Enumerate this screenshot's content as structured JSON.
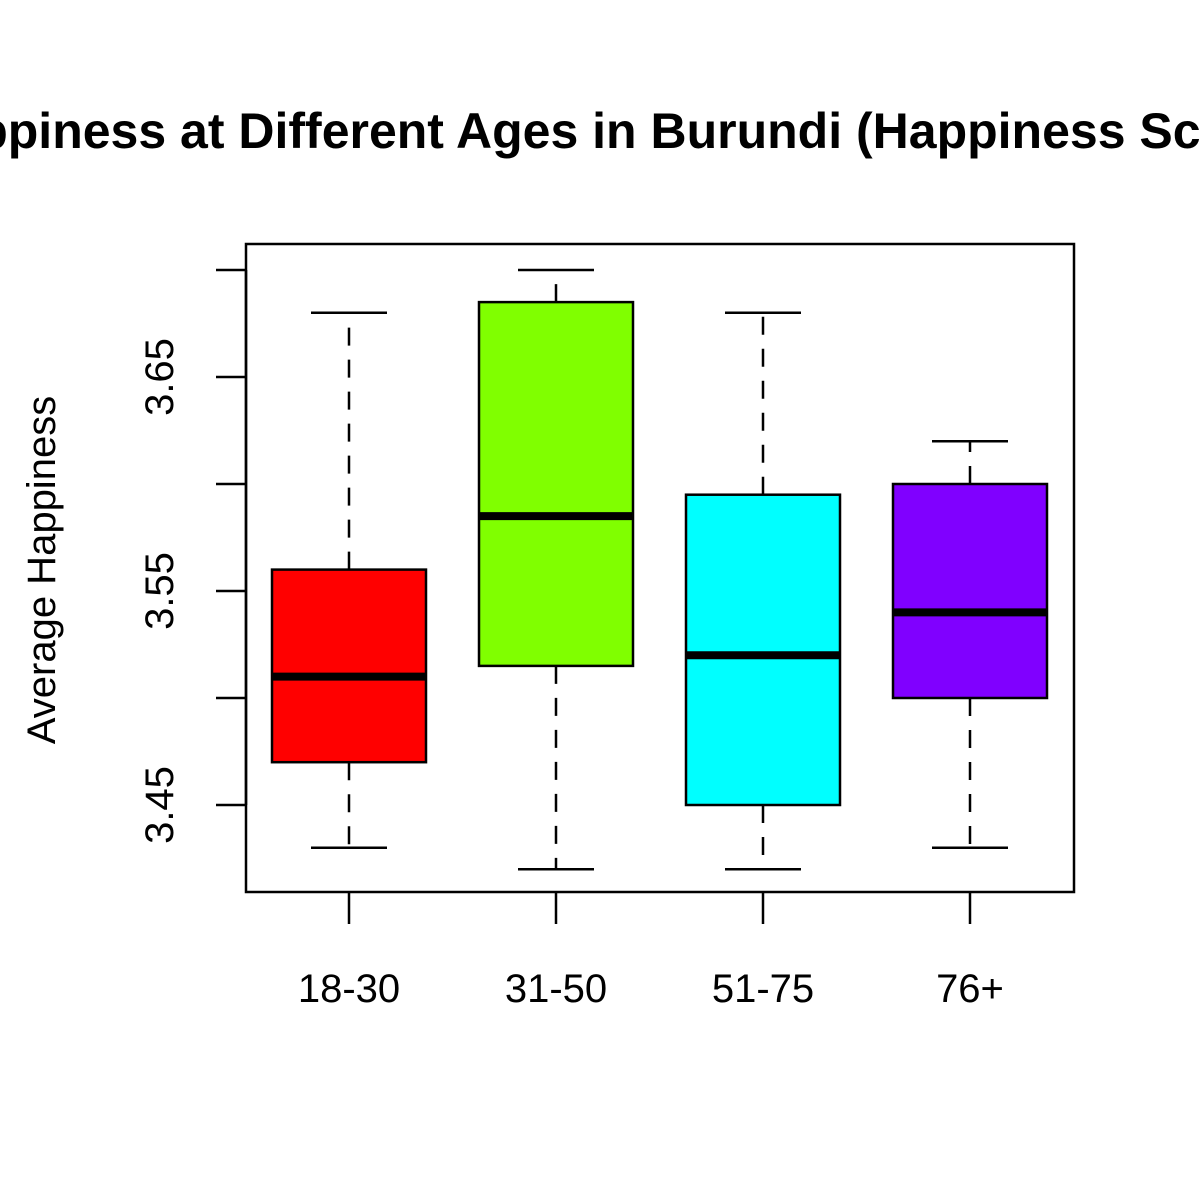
{
  "chart_data": {
    "type": "box",
    "title": "Happiness at Different Ages in Burundi (Happiness Scale)",
    "xlabel": "",
    "ylabel": "Average Happiness",
    "ylim": [
      3.41,
      3.71
    ],
    "yticks": [
      3.45,
      3.5,
      3.55,
      3.6,
      3.65,
      3.7
    ],
    "ytick_labels": [
      "3.45",
      "",
      "3.55",
      "",
      "3.65",
      ""
    ],
    "grid": false,
    "legend": "none",
    "categories": [
      "18-30",
      "31-50",
      "51-75",
      "76+"
    ],
    "boxes": [
      {
        "category": "18-30",
        "min": 3.43,
        "q1": 3.47,
        "median": 3.51,
        "q3": 3.56,
        "max": 3.68,
        "color": "#ff0000"
      },
      {
        "category": "31-50",
        "min": 3.42,
        "q1": 3.515,
        "median": 3.585,
        "q3": 3.685,
        "max": 3.7,
        "color": "#80ff00"
      },
      {
        "category": "51-75",
        "min": 3.42,
        "q1": 3.45,
        "median": 3.52,
        "q3": 3.595,
        "max": 3.68,
        "color": "#00ffff"
      },
      {
        "category": "76+",
        "min": 3.43,
        "q1": 3.5,
        "median": 3.54,
        "q3": 3.6,
        "max": 3.62,
        "color": "#8000ff"
      }
    ]
  }
}
